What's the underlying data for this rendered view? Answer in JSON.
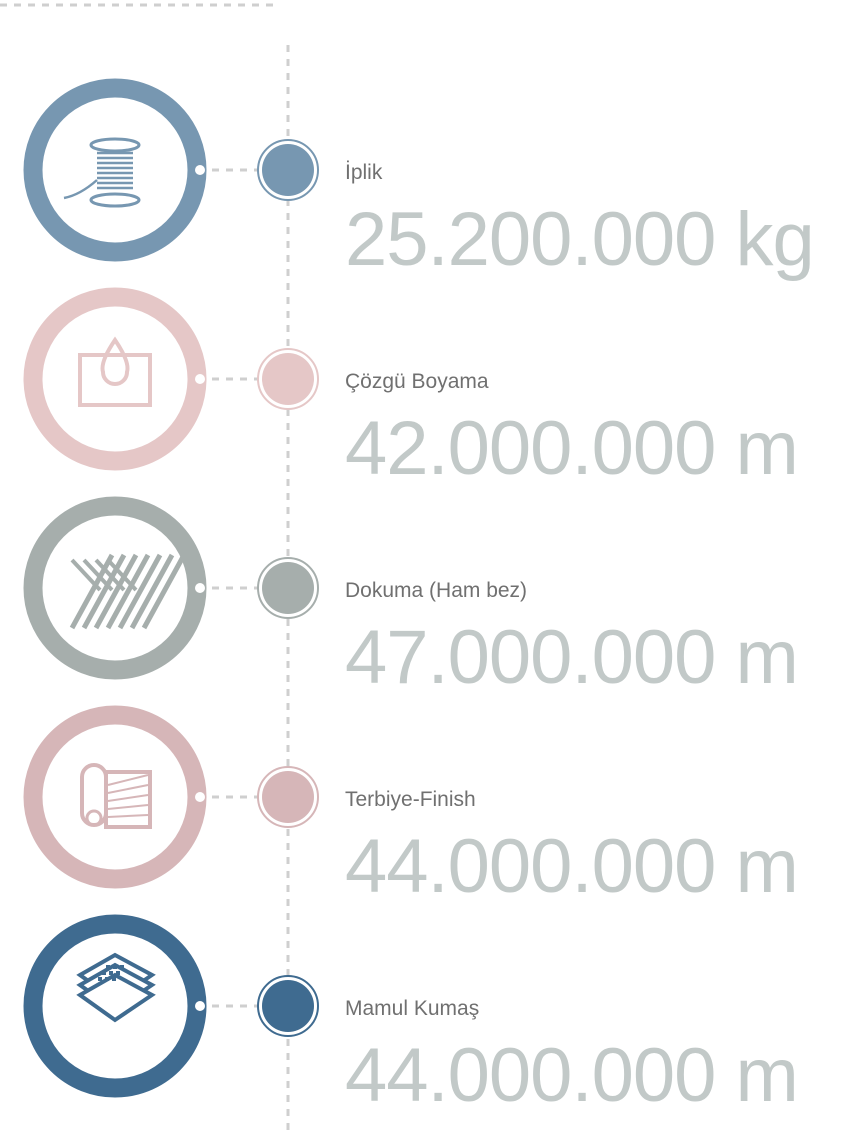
{
  "items": [
    {
      "label": "İplik",
      "value": "25.200.000 kg",
      "color": "#7797b1"
    },
    {
      "label": "Çözgü Boyama",
      "value": "42.000.000 m",
      "color": "#e5c7c7"
    },
    {
      "label": "Dokuma (Ham bez)",
      "value": "47.000.000 m",
      "color": "#a6aeac"
    },
    {
      "label": "Terbiye-Finish",
      "value": "44.000.000 m",
      "color": "#d6b6b8"
    },
    {
      "label": "Mamul Kumaş",
      "value": "44.000.000 m",
      "color": "#3f6b90"
    }
  ]
}
